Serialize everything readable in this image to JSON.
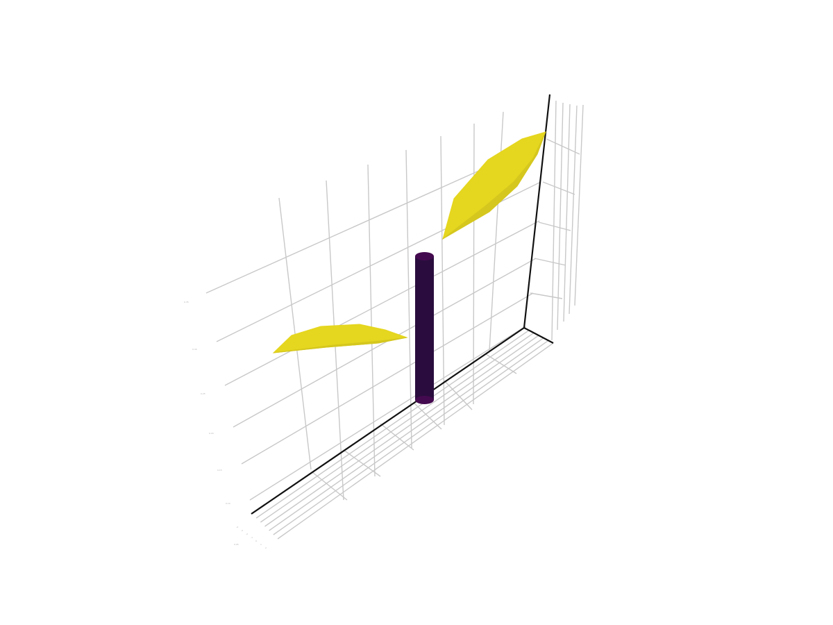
{
  "chart_data": {
    "type": "3d-mesh",
    "title": "",
    "xlabel": "",
    "ylabel": "",
    "zlabel": "",
    "colorscale": "viridis",
    "colors": {
      "high": "#e5d61f",
      "high_shade": "#d5c71e",
      "low": "#2a0d3e",
      "low_shade": "#440a4f"
    },
    "grid": true,
    "series": [
      {
        "shape": "ellipsoid",
        "level": "high",
        "approx_extent": [
          -3,
          2,
          1,
          0.05,
          0.1
        ]
      },
      {
        "shape": "ellipsoid",
        "level": "high",
        "approx_extent": [
          0.5,
          1.8,
          0.6,
          0.35,
          0.9
        ]
      },
      {
        "shape": "cylinder",
        "level": "low",
        "approx_extent": [
          0,
          0,
          0,
          0.15,
          1.4
        ]
      }
    ],
    "tick_labels": {
      "left": [
        "0.35",
        "0.30",
        "0.25",
        "0.20",
        "0.15",
        "0.10",
        "0.05"
      ],
      "bottom": [
        "-4",
        "-3",
        "-2",
        "-1",
        "0",
        "1",
        "2"
      ]
    }
  }
}
